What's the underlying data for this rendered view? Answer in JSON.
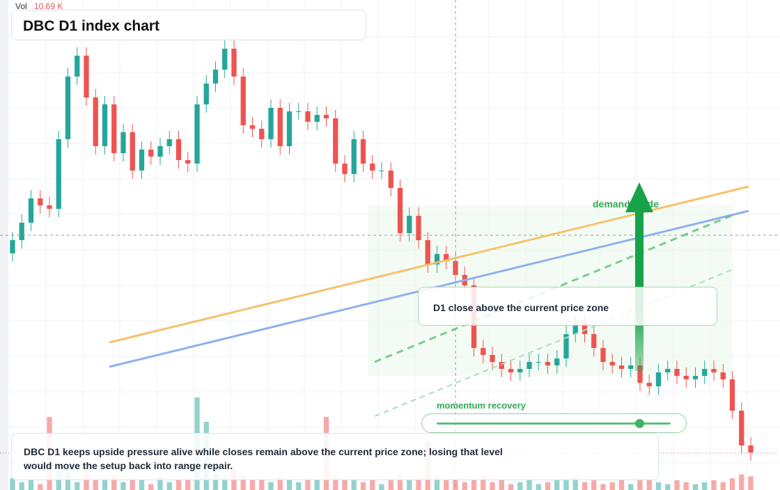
{
  "chart_data": {
    "type": "candlestick",
    "title": "DBC D1 index chart",
    "volume_label": "Vol",
    "volume_value": "10.69 K",
    "ylim": [
      0,
      704
    ],
    "volume_ylim": [
      0,
      100
    ],
    "up_color": "#26a69a",
    "down_color": "#ef5350",
    "open": [
      340,
      359,
      384,
      419,
      409,
      404,
      504,
      594,
      624,
      564,
      494,
      554,
      484,
      514,
      459,
      489,
      479,
      494,
      504,
      474,
      469,
      554,
      584,
      604,
      634,
      594,
      524,
      519,
      504,
      549,
      494,
      544,
      544,
      529,
      539,
      534,
      469,
      454,
      504,
      469,
      459,
      459,
      434,
      369,
      394,
      359,
      324,
      339,
      329,
      309,
      294,
      204,
      194,
      184,
      174,
      169,
      174,
      184,
      184,
      179,
      189,
      224,
      239,
      224,
      204,
      184,
      179,
      174,
      179,
      154,
      149,
      169,
      174,
      164,
      159,
      164,
      174,
      169,
      159,
      114,
      64
    ],
    "high": [
      371,
      396,
      431,
      431,
      421,
      516,
      606,
      636,
      636,
      576,
      566,
      566,
      526,
      526,
      501,
      501,
      506,
      516,
      516,
      486,
      566,
      596,
      616,
      646,
      646,
      606,
      536,
      531,
      561,
      561,
      556,
      556,
      556,
      551,
      551,
      546,
      481,
      516,
      516,
      481,
      471,
      471,
      446,
      406,
      406,
      371,
      351,
      351,
      341,
      321,
      306,
      216,
      206,
      196,
      186,
      186,
      196,
      196,
      196,
      201,
      236,
      251,
      251,
      236,
      216,
      196,
      191,
      191,
      191,
      166,
      181,
      186,
      186,
      176,
      176,
      186,
      186,
      181,
      171,
      126,
      76
    ],
    "low": [
      328,
      347,
      372,
      397,
      392,
      392,
      492,
      582,
      552,
      482,
      482,
      472,
      472,
      447,
      447,
      467,
      467,
      482,
      462,
      457,
      457,
      542,
      572,
      592,
      582,
      512,
      507,
      492,
      492,
      482,
      482,
      532,
      517,
      517,
      522,
      457,
      442,
      442,
      457,
      447,
      447,
      422,
      357,
      357,
      347,
      312,
      312,
      317,
      297,
      282,
      192,
      182,
      172,
      162,
      157,
      157,
      162,
      172,
      167,
      167,
      177,
      212,
      212,
      192,
      172,
      167,
      162,
      162,
      142,
      137,
      137,
      157,
      152,
      147,
      147,
      152,
      157,
      147,
      102,
      52,
      42
    ],
    "close": [
      359,
      384,
      419,
      409,
      404,
      504,
      594,
      624,
      564,
      494,
      554,
      484,
      514,
      459,
      489,
      479,
      494,
      504,
      474,
      469,
      554,
      584,
      604,
      634,
      594,
      524,
      519,
      504,
      549,
      494,
      544,
      544,
      529,
      539,
      534,
      469,
      454,
      504,
      469,
      459,
      459,
      434,
      369,
      394,
      359,
      324,
      339,
      329,
      309,
      294,
      204,
      194,
      184,
      174,
      169,
      174,
      184,
      184,
      179,
      189,
      224,
      239,
      224,
      204,
      184,
      179,
      174,
      179,
      154,
      149,
      169,
      174,
      164,
      159,
      164,
      174,
      169,
      159,
      114,
      64,
      54
    ],
    "volume": [
      12,
      8,
      10,
      6,
      75,
      20,
      18,
      8,
      22,
      10,
      14,
      16,
      8,
      12,
      10,
      6,
      14,
      8,
      10,
      12,
      95,
      70,
      18,
      14,
      20,
      16,
      10,
      12,
      8,
      14,
      10,
      8,
      12,
      10,
      75,
      14,
      10,
      12,
      8,
      10,
      6,
      12,
      16,
      10,
      12,
      50,
      14,
      10,
      12,
      8,
      10,
      16,
      8,
      10,
      6,
      8,
      10,
      6,
      8,
      10,
      12,
      14,
      8,
      10,
      6,
      8,
      10,
      6,
      12,
      10,
      8,
      6,
      10,
      8,
      6,
      8,
      10,
      8,
      12,
      16,
      14
    ],
    "annotations": {
      "zone_note": "D1 close above the current price zone",
      "guide": "demand guide",
      "momentum": "momentum recovery",
      "summary": "DBC D1 keeps upside pressure alive while closes remain above the current price zone; losing that level would move the setup back into range repair."
    }
  }
}
